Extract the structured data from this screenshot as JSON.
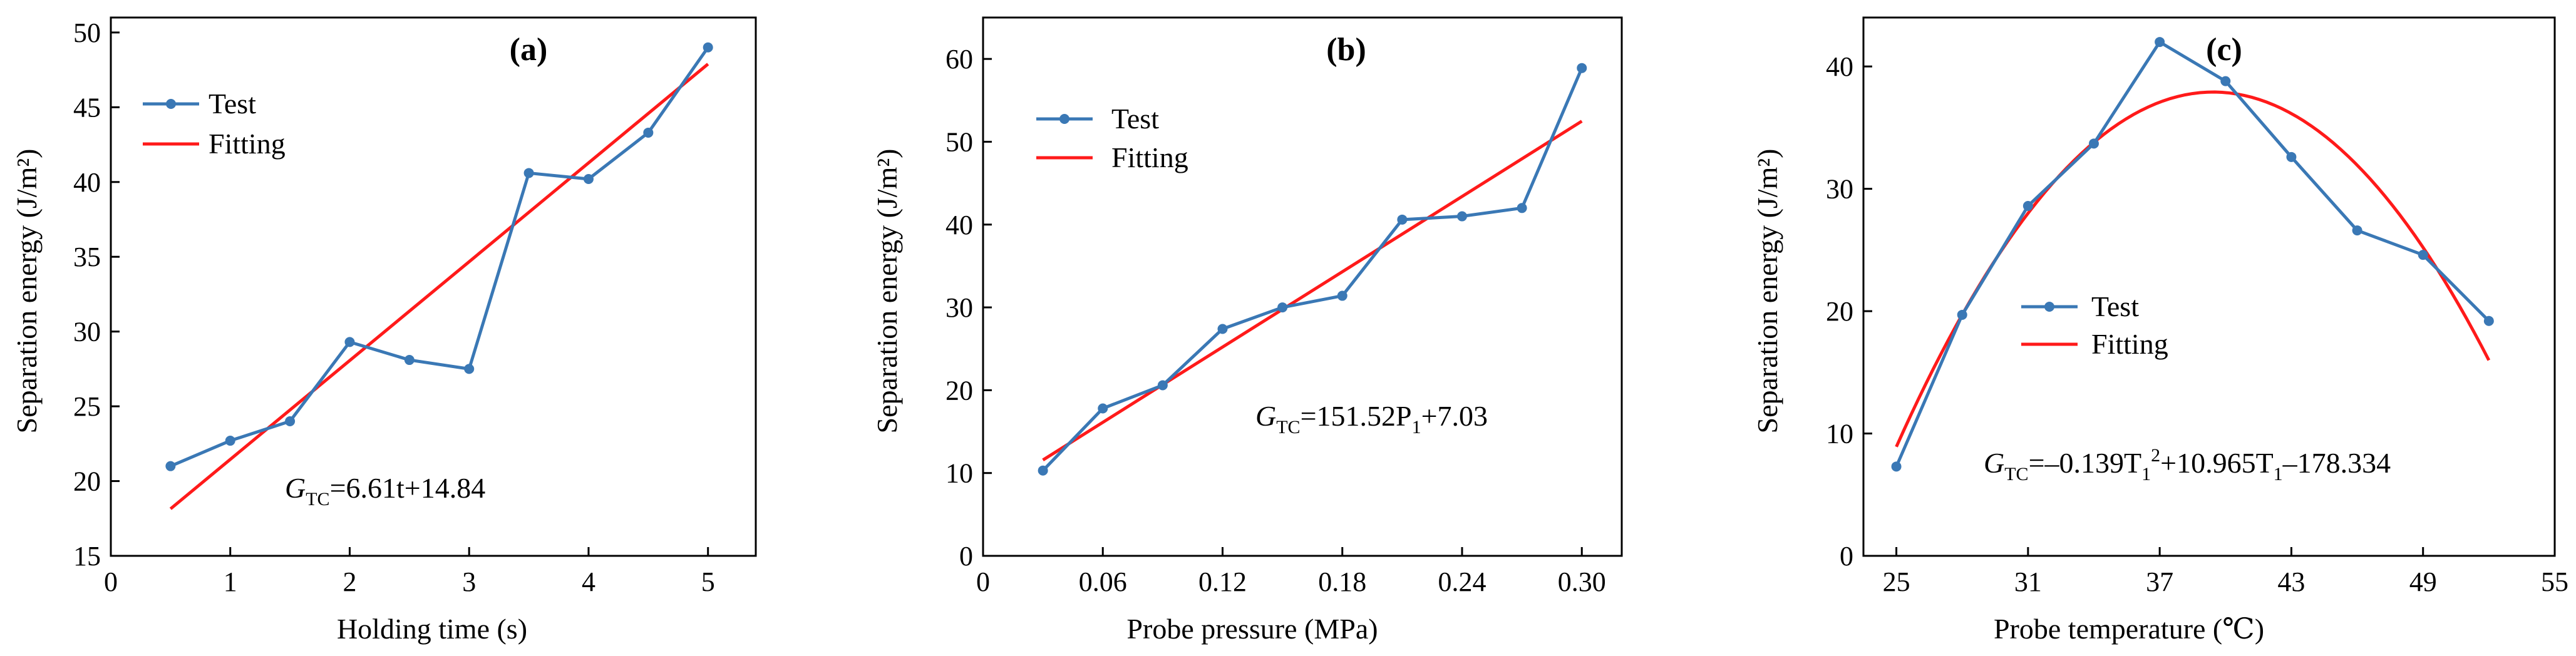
{
  "colors": {
    "test": "#3A78B5",
    "fitting": "#FF1A1A",
    "axis": "#000000"
  },
  "chart_data": [
    {
      "type": "line",
      "panel": "(a)",
      "xlabel": "Holding time (s)",
      "ylabel": "Separation energy (J/m²)",
      "xlim": [
        0,
        5.4
      ],
      "ylim": [
        15,
        51
      ],
      "xticks": [
        0,
        1,
        2,
        3,
        4,
        5
      ],
      "yticks": [
        15,
        20,
        25,
        30,
        35,
        40,
        45,
        50
      ],
      "xticklabels": [
        "0",
        "1",
        "2",
        "3",
        "4",
        "5"
      ],
      "yticklabels": [
        "15",
        "20",
        "25",
        "30",
        "35",
        "40",
        "45",
        "50"
      ],
      "legend": {
        "position": "top-left",
        "test_label": "Test",
        "fit_label": "Fitting"
      },
      "series": [
        {
          "name": "Test",
          "x": [
            0.5,
            1.0,
            1.5,
            2.0,
            2.5,
            3.0,
            3.5,
            4.0,
            4.5,
            5.0
          ],
          "y": [
            21.0,
            22.7,
            24.0,
            29.3,
            28.1,
            27.5,
            40.6,
            40.2,
            43.3,
            49.0
          ]
        },
        {
          "name": "Fitting",
          "kind": "linear",
          "slope": 6.61,
          "intercept": 14.84,
          "x_range": [
            0.5,
            5.0
          ]
        }
      ],
      "equation": {
        "symbol": "G",
        "symbol_sub": "TC",
        "text": "=6.61t+14.84"
      }
    },
    {
      "type": "line",
      "panel": "(b)",
      "xlabel": "Probe pressure (MPa)",
      "ylabel": "Separation energy (J/m²)",
      "xlim": [
        0,
        0.32
      ],
      "ylim": [
        0,
        65
      ],
      "xticks": [
        0,
        0.06,
        0.12,
        0.18,
        0.24,
        0.3
      ],
      "yticks": [
        0,
        10,
        20,
        30,
        40,
        50,
        60
      ],
      "xticklabels": [
        "0",
        "0.06",
        "0.12",
        "0.18",
        "0.24",
        "0.30"
      ],
      "yticklabels": [
        "0",
        "10",
        "20",
        "30",
        "40",
        "50",
        "60"
      ],
      "legend": {
        "position": "top-left",
        "test_label": "Test",
        "fit_label": "Fitting"
      },
      "series": [
        {
          "name": "Test",
          "x": [
            0.03,
            0.06,
            0.09,
            0.12,
            0.15,
            0.18,
            0.21,
            0.24,
            0.27,
            0.3
          ],
          "y": [
            10.3,
            17.8,
            20.6,
            27.4,
            30.0,
            31.4,
            40.6,
            41.0,
            42.0,
            58.9
          ]
        },
        {
          "name": "Fitting",
          "kind": "linear",
          "slope": 151.52,
          "intercept": 7.03,
          "x_range": [
            0.03,
            0.3
          ]
        }
      ],
      "equation": {
        "symbol": "G",
        "symbol_sub": "TC",
        "text": "=151.52P",
        "var_sub": "1",
        "tail": "+7.03"
      }
    },
    {
      "type": "line",
      "panel": "(c)",
      "xlabel": "Probe temperature (℃)",
      "ylabel": "Separation energy (J/m²)",
      "xlim": [
        23.5,
        55
      ],
      "ylim": [
        0,
        44
      ],
      "xticks": [
        25,
        31,
        37,
        43,
        49,
        55
      ],
      "yticks": [
        0,
        10,
        20,
        30,
        40
      ],
      "xticklabels": [
        "25",
        "31",
        "37",
        "43",
        "49",
        "55"
      ],
      "yticklabels": [
        "0",
        "10",
        "20",
        "30",
        "40"
      ],
      "legend": {
        "position": "center-right",
        "test_label": "Test",
        "fit_label": "Fitting"
      },
      "series": [
        {
          "name": "Test",
          "x": [
            25,
            28,
            31,
            34,
            37,
            40,
            43,
            46,
            49,
            52
          ],
          "y": [
            7.3,
            19.7,
            28.6,
            33.7,
            42.0,
            38.8,
            32.6,
            26.6,
            24.6,
            19.2
          ]
        },
        {
          "name": "Fitting",
          "kind": "quadratic",
          "a": -0.139,
          "b": 10.965,
          "c": -178.334,
          "x_range": [
            25,
            52
          ]
        }
      ],
      "equation": {
        "symbol": "G",
        "symbol_sub": "TC",
        "part1": "=–0.139T",
        "var_sub": "1",
        "sup": "2",
        "part2": "+10.965T",
        "part3": "–178.334"
      }
    }
  ]
}
